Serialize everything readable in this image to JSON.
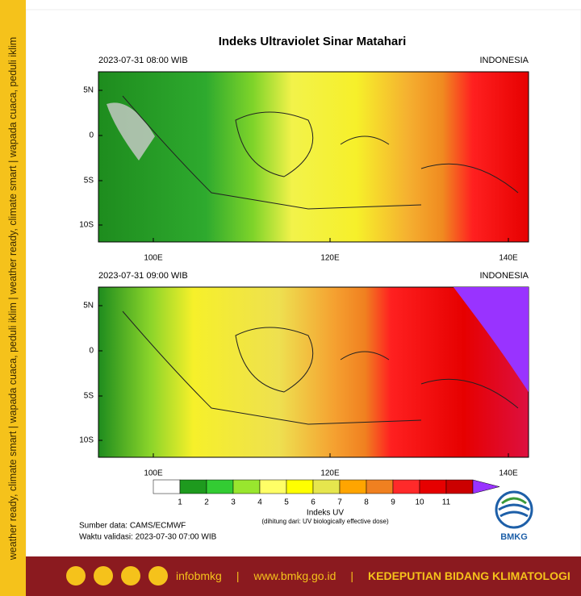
{
  "side_text": "weather ready, climate smart  |  wapada cuaca, peduli iklim  |  weather ready, climate smart  |  wapada cuaca, peduli iklim",
  "title": "Indeks Ultraviolet Sinar Matahari",
  "panels": [
    {
      "time": "2023-07-31  08:00 WIB",
      "region": "INDONESIA"
    },
    {
      "time": "2023-07-31  09:00 WIB",
      "region": "INDONESIA"
    }
  ],
  "axes": {
    "lat_labels": [
      "5N",
      "0",
      "5S",
      "10S"
    ],
    "lon_labels": [
      "100E",
      "120E",
      "140E"
    ]
  },
  "colorbar": {
    "colors": [
      "#ffffff",
      "#1e9a1e",
      "#33cc33",
      "#99e62e",
      "#ffff66",
      "#ffff00",
      "#e6e64d",
      "#ffa500",
      "#f08020",
      "#ff2a2a",
      "#e60000",
      "#cc0000"
    ],
    "over_color": "#9933ff",
    "labels": [
      1,
      2,
      3,
      4,
      5,
      6,
      7,
      8,
      9,
      10,
      11
    ],
    "title": "Indeks UV",
    "subtitle": "(dihitung dari: UV biologically effective dose)"
  },
  "source": "Sumber data: CAMS/ECMWF",
  "validity": "Waktu validasi: 2023-07-30 07:00 WIB",
  "logo_text": "BMKG",
  "footer": {
    "handle": "infobmkg",
    "separator": "|",
    "website": "www.bmkg.go.id",
    "department": "KEDEPUTIAN BIDANG KLIMATOLOGI"
  }
}
